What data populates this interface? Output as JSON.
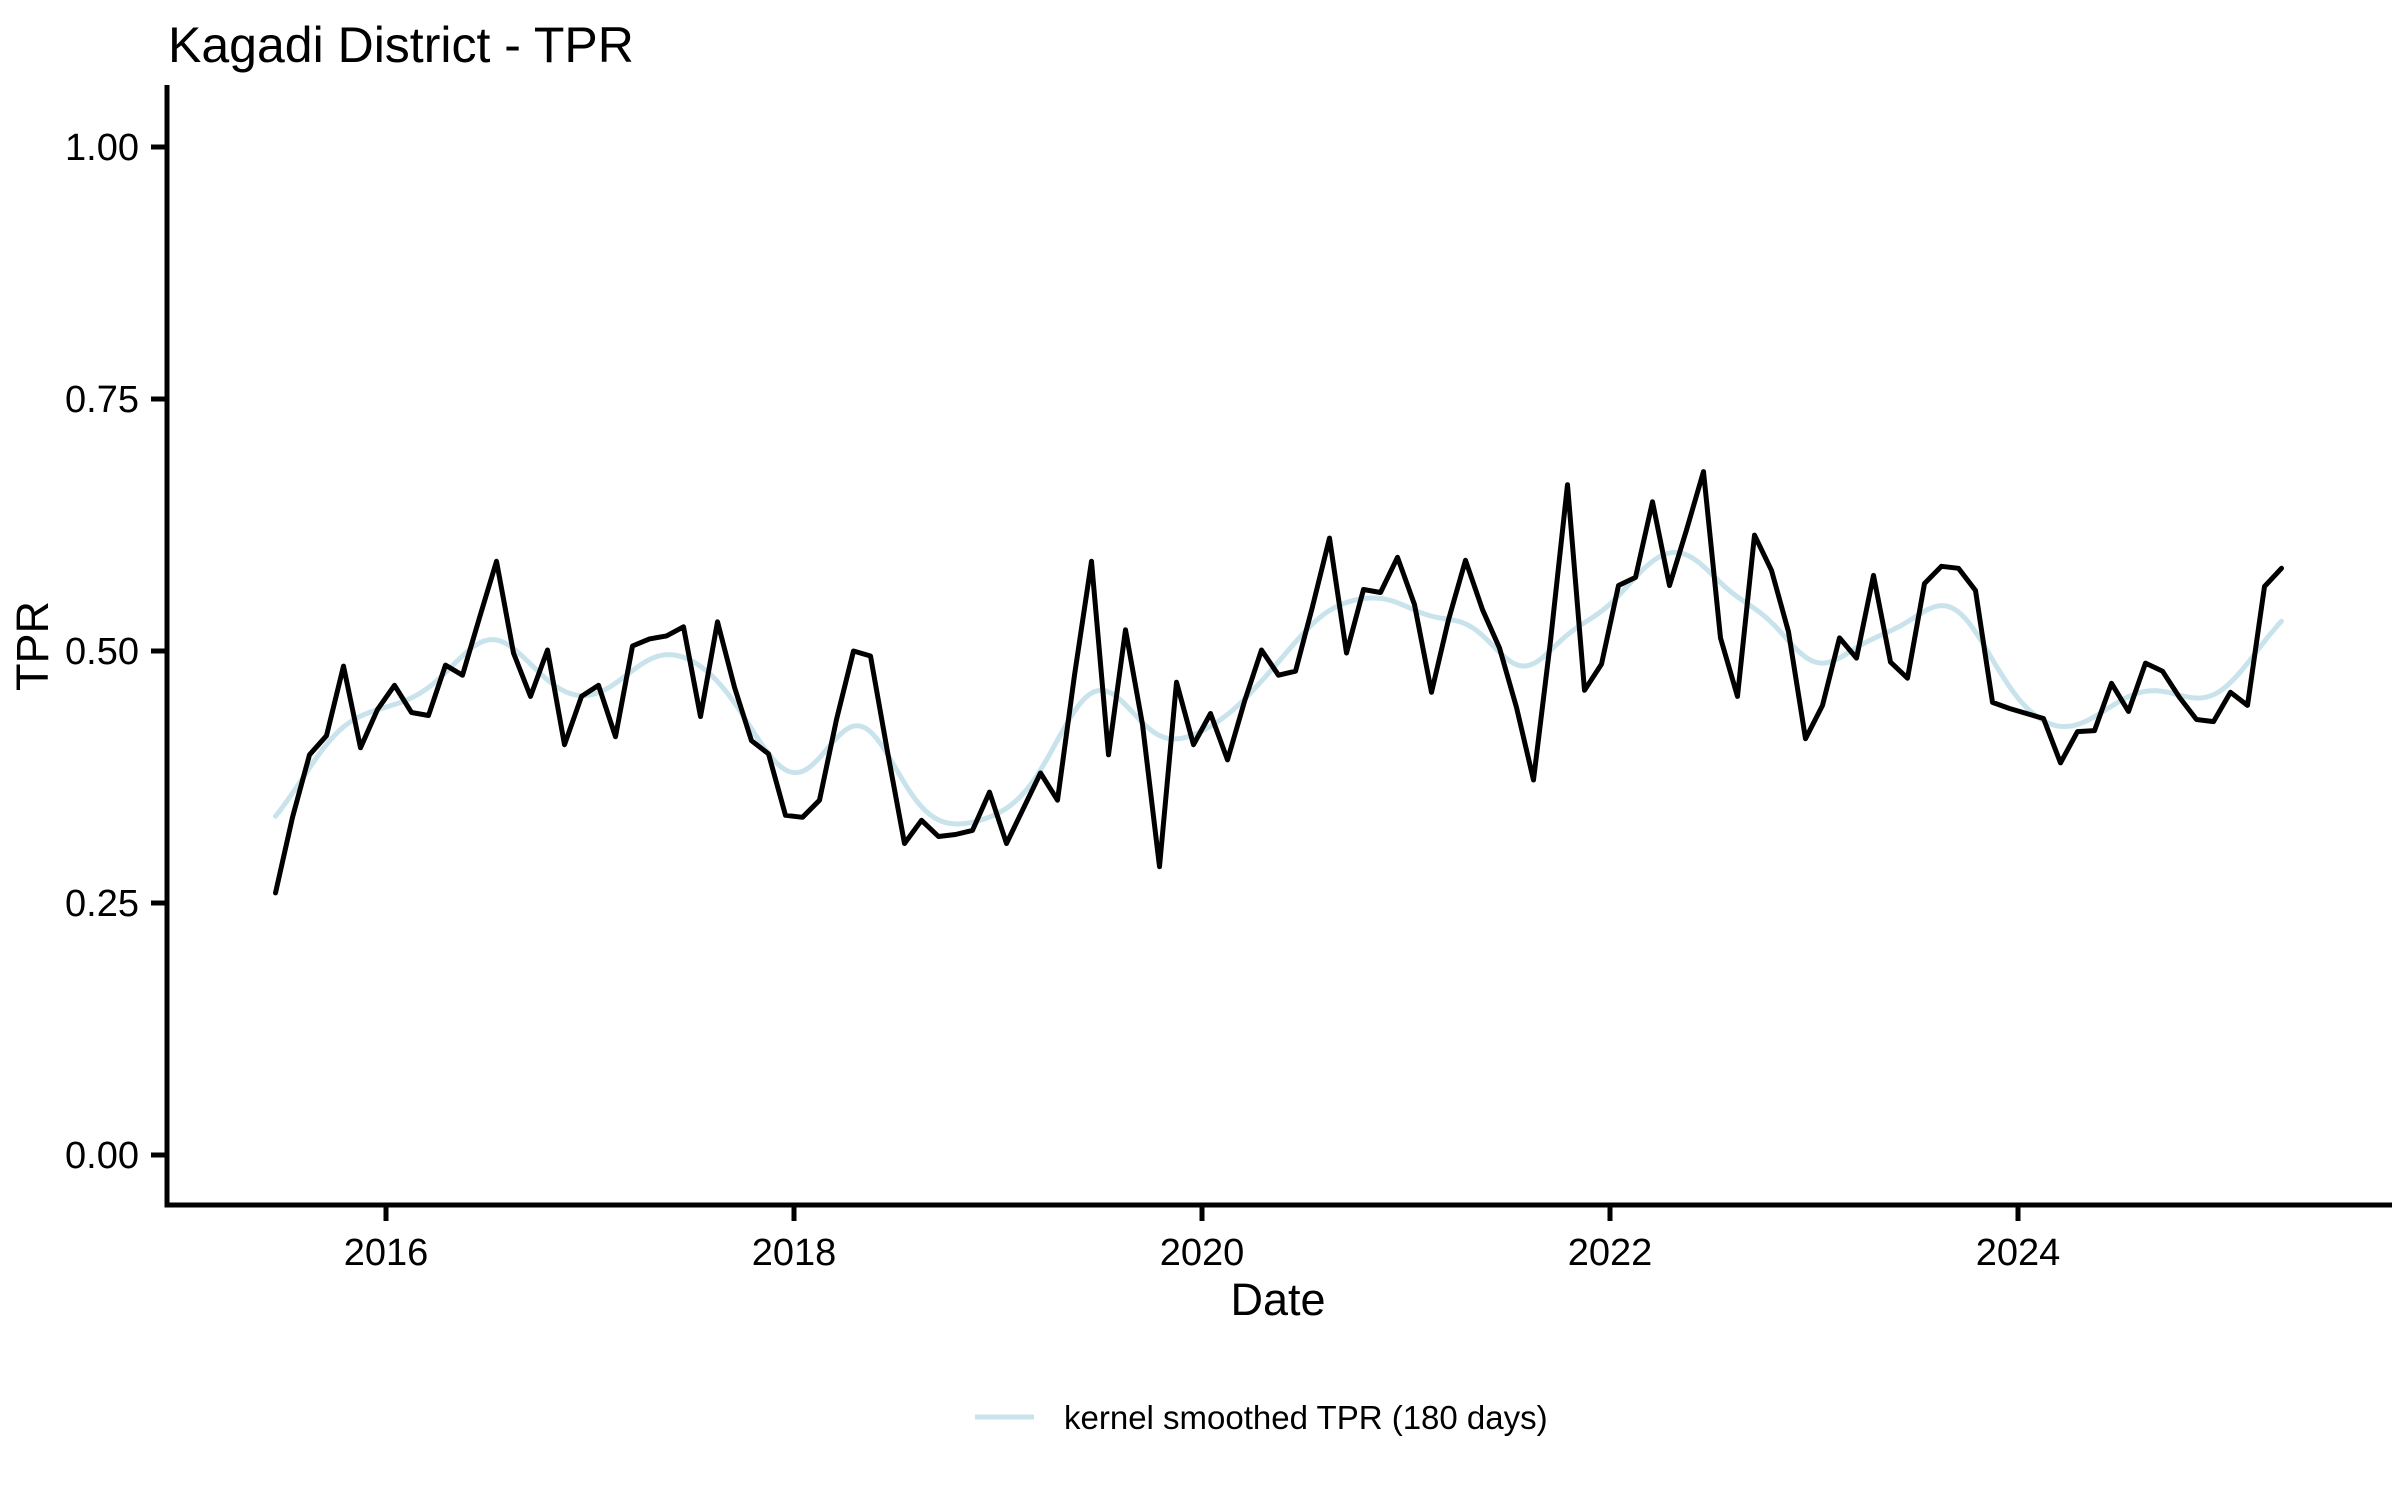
{
  "title": "Kagadi District - TPR",
  "axes": {
    "x_label": "Date",
    "y_label": "TPR",
    "x_tick_labels": [
      "2016",
      "2018",
      "2020",
      "2022",
      "2024"
    ],
    "y_tick_labels": [
      "0.00",
      "0.25",
      "0.50",
      "0.75",
      "1.00"
    ]
  },
  "legend": {
    "items": [
      {
        "label": "kernel smoothed TPR (180 days)",
        "color": "#c9e3ec",
        "swatch": "line"
      }
    ],
    "position": "bottom-center"
  },
  "colors": {
    "raw_line": "#000000",
    "smoothed_line": "#c9e3ec",
    "axis": "#000000",
    "background": "#ffffff"
  },
  "chart_data": {
    "type": "line",
    "title": "Kagadi District - TPR",
    "xlabel": "Date",
    "ylabel": "TPR",
    "ylim": [
      0.0,
      1.0
    ],
    "x_range_years": [
      2015.42,
      2025.33
    ],
    "x_tick_years": [
      2016,
      2018,
      2020,
      2022,
      2024
    ],
    "x_tick_labels": [
      "2016",
      "2018",
      "2020",
      "2022",
      "2024"
    ],
    "y_tick_values": [
      0.0,
      0.25,
      0.5,
      0.75,
      1.0
    ],
    "y_tick_labels": [
      "0.00",
      "0.25",
      "0.50",
      "0.75",
      "1.00"
    ],
    "grid": false,
    "legend_position": "bottom",
    "series": [
      {
        "name": "TPR",
        "style": "raw-monthly",
        "color": "#000000",
        "start_month": "2015-06",
        "frequency": "monthly",
        "values": [
          0.26,
          0.335,
          0.397,
          0.416,
          0.485,
          0.404,
          0.442,
          0.466,
          0.439,
          0.436,
          0.486,
          0.476,
          0.533,
          0.589,
          0.498,
          0.455,
          0.501,
          0.407,
          0.455,
          0.466,
          0.415,
          0.505,
          0.512,
          0.515,
          0.524,
          0.435,
          0.529,
          0.464,
          0.411,
          0.398,
          0.337,
          0.335,
          0.352,
          0.432,
          0.5,
          0.495,
          0.4,
          0.309,
          0.332,
          0.316,
          0.318,
          0.322,
          0.36,
          0.309,
          0.344,
          0.379,
          0.352,
          0.476,
          0.589,
          0.397,
          0.521,
          0.427,
          0.286,
          0.469,
          0.407,
          0.438,
          0.392,
          0.45,
          0.501,
          0.476,
          0.48,
          0.544,
          0.612,
          0.498,
          0.561,
          0.558,
          0.593,
          0.546,
          0.459,
          0.531,
          0.59,
          0.541,
          0.503,
          0.444,
          0.372,
          0.51,
          0.665,
          0.461,
          0.487,
          0.565,
          0.573,
          0.648,
          0.565,
          0.62,
          0.678,
          0.513,
          0.455,
          0.615,
          0.58,
          0.519,
          0.413,
          0.446,
          0.513,
          0.493,
          0.575,
          0.489,
          0.473,
          0.567,
          0.584,
          0.582,
          0.56,
          0.449,
          0.443,
          0.438,
          0.433,
          0.389,
          0.42,
          0.421,
          0.468,
          0.44,
          0.488,
          0.48,
          0.454,
          0.432,
          0.43,
          0.459,
          0.446,
          0.564,
          0.582
        ]
      },
      {
        "name": "kernel smoothed TPR (180 days)",
        "style": "smoothed",
        "color": "#c9e3ec",
        "derived_from": "TPR",
        "method": "gaussian kernel smooth, bandwidth 180 days"
      }
    ]
  }
}
